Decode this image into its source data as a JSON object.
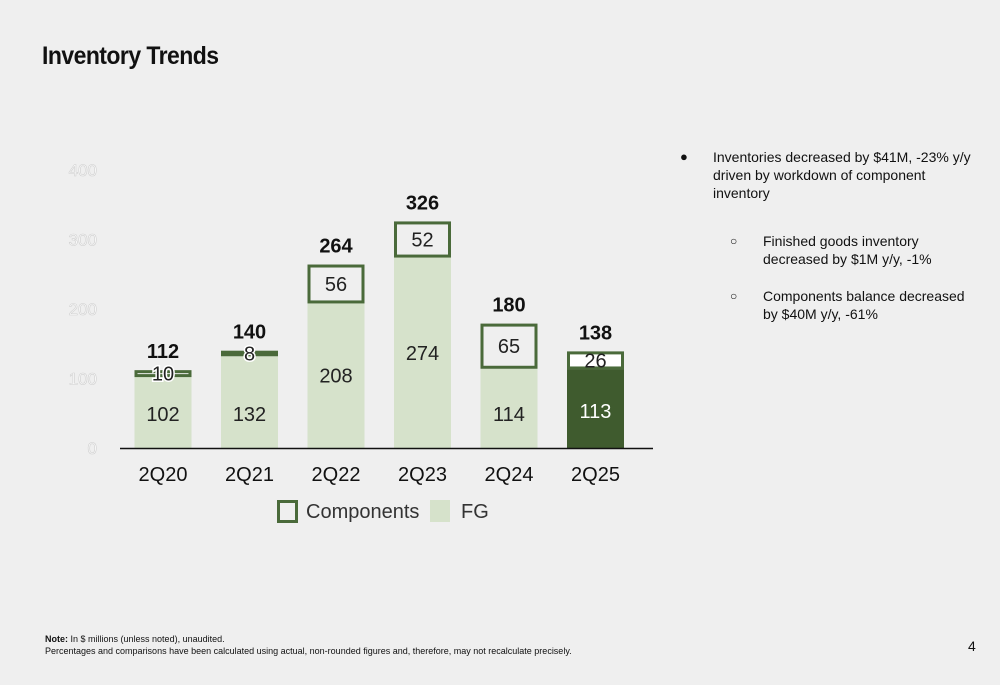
{
  "title": "Inventory Trends",
  "chart_data": {
    "type": "bar",
    "stacked": true,
    "categories": [
      "2Q20",
      "2Q21",
      "2Q22",
      "2Q23",
      "2Q24",
      "2Q25"
    ],
    "series": [
      {
        "name": "FG",
        "values": [
          102,
          132,
          208,
          274,
          114,
          113
        ]
      },
      {
        "name": "Components",
        "values": [
          10,
          8,
          56,
          52,
          65,
          26
        ]
      }
    ],
    "totals": [
      112,
      140,
      264,
      326,
      180,
      138
    ],
    "y_ticks": [
      "0",
      "100",
      "200",
      "300",
      "400"
    ],
    "ylim": [
      0,
      400
    ],
    "grid": false,
    "legend_position": "bottom",
    "highlighted_category": "2Q25",
    "colors": {
      "fg_fill": "#d6e2cb",
      "components_outline": "#4a6a3a",
      "highlight_fill": "#3f5b2e"
    }
  },
  "bullets": {
    "main": "Inventories decreased by $41M, -23% y/y driven by workdown of component inventory",
    "sub": [
      "Finished goods inventory decreased by $1M y/y, -1%",
      "Components balance decreased by $40M y/y, -61%"
    ]
  },
  "note": {
    "label": "Note:",
    "line1": "In $ millions (unless noted), unaudited.",
    "line2": "Percentages and comparisons have been calculated using actual, non-rounded figures and, therefore, may not recalculate precisely."
  },
  "page_number": "4"
}
